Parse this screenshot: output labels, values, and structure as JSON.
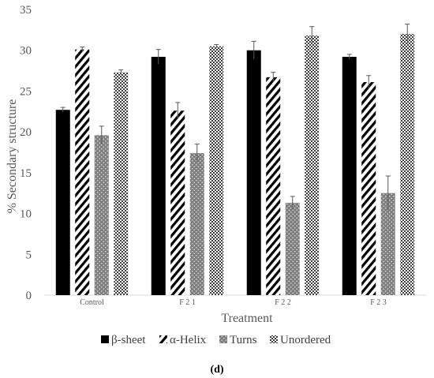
{
  "chart_data": {
    "type": "bar",
    "title": "",
    "xlabel": "Treatment",
    "ylabel": "% Secondary structure",
    "ylim": [
      0,
      35
    ],
    "yticks": [
      0,
      5,
      10,
      15,
      20,
      25,
      30,
      35
    ],
    "categories": [
      "Control",
      "F 2 1",
      "F 2 2",
      "F 2 3"
    ],
    "series": [
      {
        "name": "β-sheet",
        "pattern": "solid",
        "color": "#000000",
        "values": [
          22.7,
          29.2,
          30.0,
          29.2
        ],
        "errors": [
          0.3,
          0.9,
          1.1,
          0.3
        ]
      },
      {
        "name": "α-Helix",
        "pattern": "diagonal-stripes",
        "color": "#000000",
        "values": [
          30.1,
          22.6,
          26.7,
          26.1
        ],
        "errors": [
          0.3,
          1.0,
          0.6,
          0.8
        ]
      },
      {
        "name": "Turns",
        "pattern": "dots",
        "color": "#808080",
        "values": [
          19.6,
          17.4,
          11.3,
          12.5
        ],
        "errors": [
          1.1,
          1.1,
          0.8,
          2.1
        ]
      },
      {
        "name": "Unordered",
        "pattern": "checker",
        "color": "#404040",
        "values": [
          27.3,
          30.5,
          31.8,
          32.0
        ],
        "errors": [
          0.3,
          0.2,
          1.1,
          1.2
        ]
      }
    ],
    "legend_position": "bottom",
    "grid": false
  },
  "panel_label": "(d)"
}
